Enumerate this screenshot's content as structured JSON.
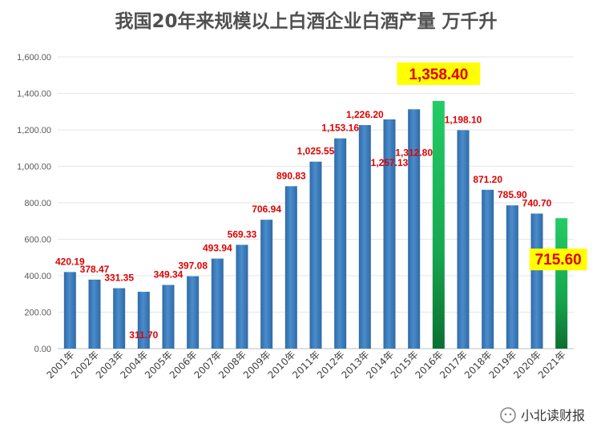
{
  "chart_data": {
    "type": "bar",
    "title": "我国20年来规模以上白酒企业白酒产量 万千升",
    "categories": [
      "2001年",
      "2002年",
      "2003年",
      "2004年",
      "2005年",
      "2006年",
      "2007年",
      "2008年",
      "2009年",
      "2010年",
      "2011年",
      "2012年",
      "2013年",
      "2014年",
      "2015年",
      "2016年",
      "2017年",
      "2018年",
      "2019年",
      "2020年",
      "2021年"
    ],
    "values": [
      420.19,
      378.47,
      331.35,
      311.7,
      349.34,
      397.08,
      493.94,
      569.33,
      706.94,
      890.83,
      1025.55,
      1153.16,
      1226.2,
      1257.13,
      1312.8,
      1358.4,
      1198.1,
      871.2,
      785.9,
      740.7,
      715.6
    ],
    "labels": [
      "420.19",
      "378.47",
      "331.35",
      "311.70",
      "349.34",
      "397.08",
      "493.94",
      "569.33",
      "706.94",
      "890.83",
      "1,025.55",
      "1,153.16",
      "1,226.20",
      "1,257.13",
      "1,312.80",
      "1,358.40",
      "1,198.10",
      "871.20",
      "785.90",
      "740.70",
      "715.60"
    ],
    "yticks": [
      "0.00",
      "200.00",
      "400.00",
      "600.00",
      "800.00",
      "1,000.00",
      "1,200.00",
      "1,400.00",
      "1,600.00"
    ],
    "ylim": [
      0,
      1600
    ],
    "highlighted": [
      "2016年",
      "2021年"
    ],
    "xlabel": "",
    "ylabel": "",
    "grid": true,
    "colors": {
      "bar": "#3d7ab8",
      "highlight": "#1dba58",
      "label": "#e00000",
      "highlight_box": "#ffff00"
    }
  },
  "watermark": {
    "text": "小北读财报",
    "icon": "wechat-icon"
  }
}
